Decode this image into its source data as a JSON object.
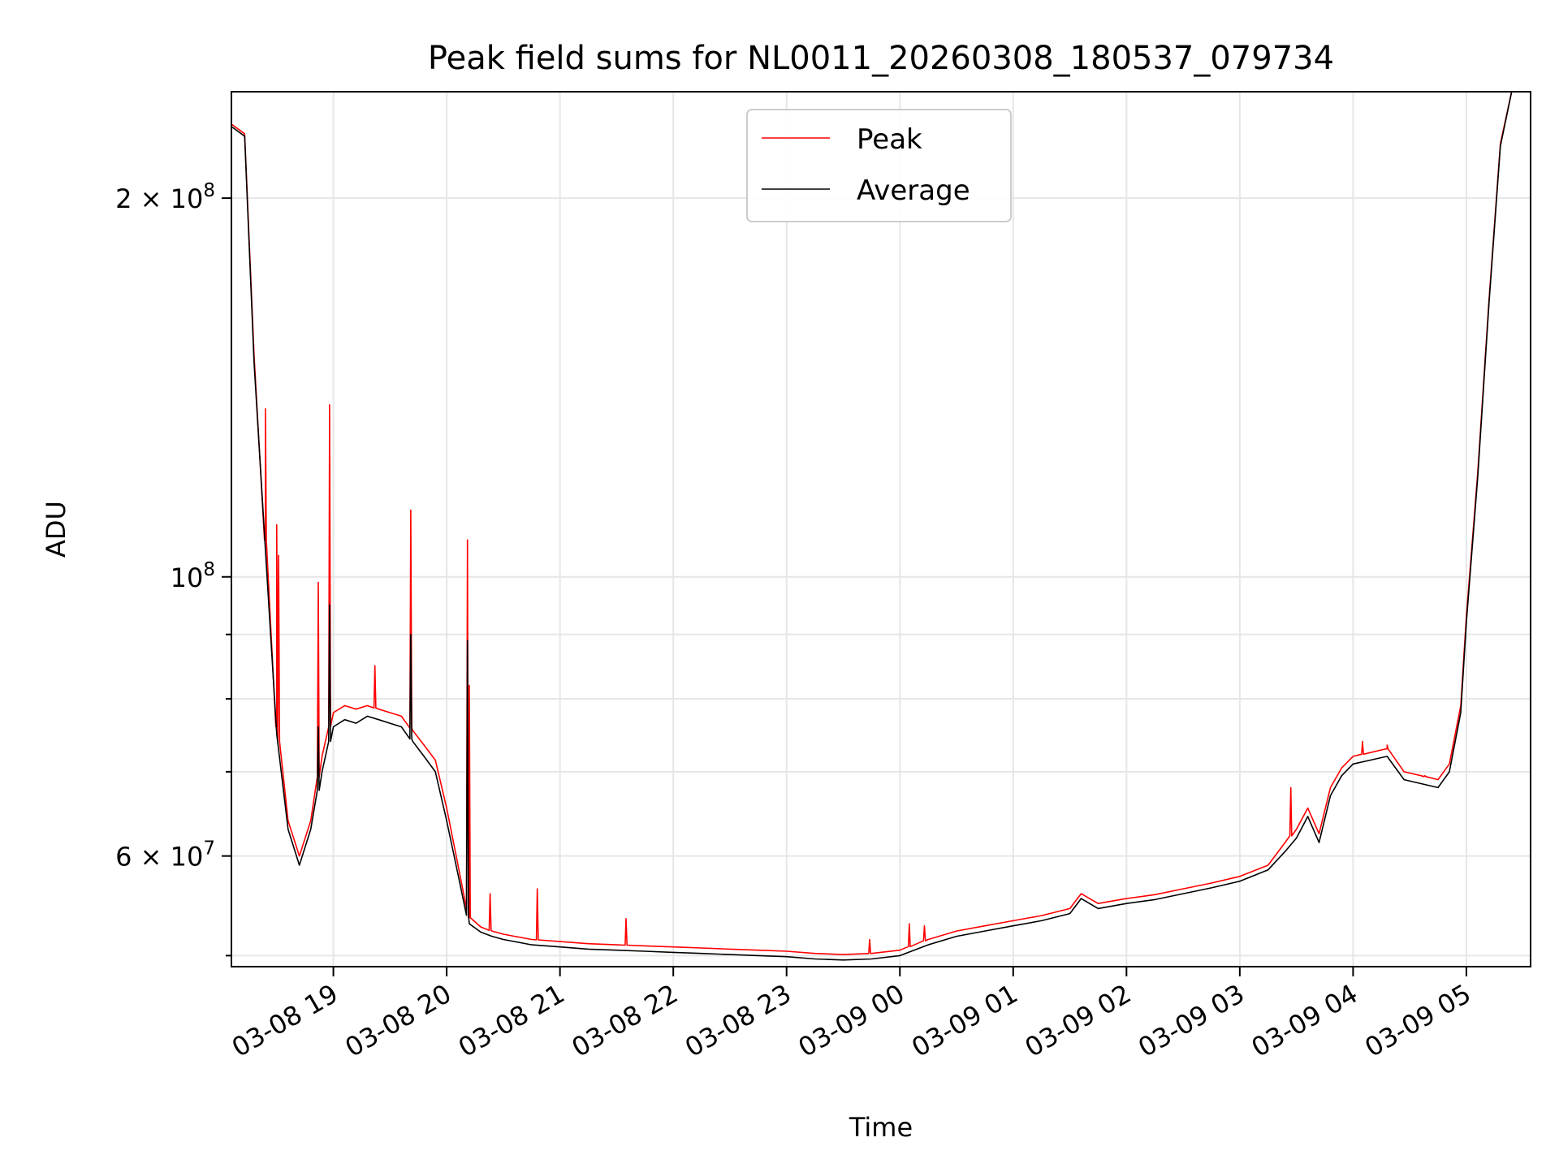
{
  "chart_data": {
    "type": "line",
    "title": "Peak field sums for NL0011_20260308_180537_079734",
    "xlabel": "Time",
    "ylabel": "ADU",
    "yscale": "log",
    "ylim": [
      49000000,
      243000000
    ],
    "xlim": [
      "2026-03-08 18:06",
      "2026-03-09 05:34"
    ],
    "x_ticks": [
      "03-08 19",
      "03-08 20",
      "03-08 21",
      "03-08 22",
      "03-08 23",
      "03-09 00",
      "03-09 01",
      "03-09 02",
      "03-09 03",
      "03-09 04",
      "03-09 05"
    ],
    "y_ticks": [
      {
        "value": 200000000,
        "base": "2 × 10",
        "exp": "8"
      },
      {
        "value": 100000000,
        "base": "10",
        "exp": "8"
      },
      {
        "value": 60000000,
        "base": "6 × 10",
        "exp": "7"
      }
    ],
    "grid": true,
    "legend": "top-center",
    "series": [
      {
        "name": "Peak",
        "color": "#ff0000"
      },
      {
        "name": "Average",
        "color": "#000000"
      }
    ],
    "x": [
      "2026-03-08 18:06",
      "2026-03-08 18:13",
      "2026-03-08 18:18",
      "2026-03-08 18:24",
      "2026-03-08 18:30",
      "2026-03-08 18:36",
      "2026-03-08 18:42",
      "2026-03-08 18:48",
      "2026-03-08 18:54",
      "2026-03-08 19:00",
      "2026-03-08 19:06",
      "2026-03-08 19:12",
      "2026-03-08 19:18",
      "2026-03-08 19:24",
      "2026-03-08 19:30",
      "2026-03-08 19:36",
      "2026-03-08 19:42",
      "2026-03-08 19:48",
      "2026-03-08 19:54",
      "2026-03-08 20:00",
      "2026-03-08 20:06",
      "2026-03-08 20:12",
      "2026-03-08 20:18",
      "2026-03-08 20:24",
      "2026-03-08 20:30",
      "2026-03-08 20:36",
      "2026-03-08 20:45",
      "2026-03-08 21:00",
      "2026-03-08 21:15",
      "2026-03-08 21:30",
      "2026-03-08 21:45",
      "2026-03-08 22:00",
      "2026-03-08 22:15",
      "2026-03-08 22:30",
      "2026-03-08 22:45",
      "2026-03-08 23:00",
      "2026-03-08 23:15",
      "2026-03-08 23:30",
      "2026-03-08 23:45",
      "2026-03-09 00:00",
      "2026-03-09 00:15",
      "2026-03-09 00:30",
      "2026-03-09 00:45",
      "2026-03-09 01:00",
      "2026-03-09 01:15",
      "2026-03-09 01:30",
      "2026-03-09 01:36",
      "2026-03-09 01:45",
      "2026-03-09 02:00",
      "2026-03-09 02:15",
      "2026-03-09 02:30",
      "2026-03-09 02:45",
      "2026-03-09 03:00",
      "2026-03-09 03:15",
      "2026-03-09 03:24",
      "2026-03-09 03:30",
      "2026-03-09 03:36",
      "2026-03-09 03:42",
      "2026-03-09 03:48",
      "2026-03-09 03:54",
      "2026-03-09 04:00",
      "2026-03-09 04:09",
      "2026-03-09 04:18",
      "2026-03-09 04:27",
      "2026-03-09 04:36",
      "2026-03-09 04:45",
      "2026-03-09 04:51",
      "2026-03-09 04:57",
      "2026-03-09 05:00",
      "2026-03-09 05:06",
      "2026-03-09 05:12",
      "2026-03-09 05:18",
      "2026-03-09 05:24",
      "2026-03-09 05:30",
      "2026-03-09 05:34"
    ],
    "average_values": [
      228000000,
      224000000,
      148000000,
      105000000,
      75000000,
      63000000,
      59000000,
      63000000,
      70000000,
      76000000,
      77000000,
      76500000,
      77500000,
      77000000,
      76500000,
      76000000,
      74000000,
      72000000,
      70000000,
      64000000,
      58000000,
      53000000,
      52200000,
      51800000,
      51500000,
      51300000,
      51000000,
      50800000,
      50600000,
      50500000,
      50400000,
      50300000,
      50200000,
      50100000,
      50000000,
      49900000,
      49700000,
      49600000,
      49700000,
      50000000,
      51000000,
      51800000,
      52300000,
      52800000,
      53300000,
      54000000,
      55500000,
      54500000,
      55000000,
      55400000,
      56000000,
      56600000,
      57300000,
      58500000,
      60500000,
      62000000,
      64500000,
      61500000,
      67000000,
      69500000,
      71000000,
      71500000,
      72000000,
      69000000,
      68500000,
      68000000,
      70000000,
      78000000,
      92000000,
      120000000,
      165000000,
      220000000,
      243000000,
      243000000,
      243000000
    ],
    "peak_values": [
      229000000,
      225000000,
      150000000,
      107000000,
      76000000,
      64000000,
      60000000,
      64000000,
      72000000,
      78000000,
      79000000,
      78500000,
      79000000,
      78500000,
      78000000,
      77500000,
      75500000,
      73500000,
      71500000,
      65500000,
      59000000,
      53600000,
      52700000,
      52300000,
      52000000,
      51800000,
      51500000,
      51300000,
      51100000,
      51000000,
      50900000,
      50800000,
      50700000,
      50600000,
      50500000,
      50400000,
      50200000,
      50100000,
      50200000,
      50500000,
      51500000,
      52300000,
      52800000,
      53300000,
      53800000,
      54500000,
      56000000,
      55000000,
      55500000,
      55900000,
      56500000,
      57100000,
      57800000,
      59000000,
      61500000,
      63000000,
      65500000,
      62500000,
      68000000,
      70500000,
      72000000,
      72500000,
      73000000,
      70000000,
      69500000,
      69000000,
      71000000,
      79000000,
      93000000,
      121000000,
      166000000,
      221000000,
      243000000,
      243000000,
      243000000
    ],
    "peak_spikes": [
      {
        "x": "2026-03-08 18:24",
        "value": 136000000
      },
      {
        "x": "2026-03-08 18:30",
        "value": 110000000
      },
      {
        "x": "2026-03-08 18:31",
        "value": 104000000
      },
      {
        "x": "2026-03-08 18:52",
        "value": 99000000
      },
      {
        "x": "2026-03-08 18:58",
        "value": 137000000
      },
      {
        "x": "2026-03-08 19:22",
        "value": 85000000
      },
      {
        "x": "2026-03-08 19:41",
        "value": 113000000
      },
      {
        "x": "2026-03-08 20:11",
        "value": 107000000
      },
      {
        "x": "2026-03-08 20:12",
        "value": 82000000
      },
      {
        "x": "2026-03-08 20:23",
        "value": 56000000
      },
      {
        "x": "2026-03-08 20:48",
        "value": 56500000
      },
      {
        "x": "2026-03-08 21:35",
        "value": 53500000
      },
      {
        "x": "2026-03-08 23:44",
        "value": 51500000
      },
      {
        "x": "2026-03-09 00:05",
        "value": 53000000
      },
      {
        "x": "2026-03-09 00:13",
        "value": 52800000
      },
      {
        "x": "2026-03-09 03:27",
        "value": 68000000
      },
      {
        "x": "2026-03-09 04:05",
        "value": 74000000
      },
      {
        "x": "2026-03-09 04:18",
        "value": 73500000
      },
      {
        "x": "2026-03-09 04:38",
        "value": 69500000
      }
    ],
    "average_spikes": [
      {
        "x": "2026-03-08 18:58",
        "value": 95000000
      },
      {
        "x": "2026-03-08 19:41",
        "value": 90000000
      },
      {
        "x": "2026-03-08 20:11",
        "value": 89000000
      },
      {
        "x": "2026-03-08 18:52",
        "value": 76000000
      }
    ]
  }
}
